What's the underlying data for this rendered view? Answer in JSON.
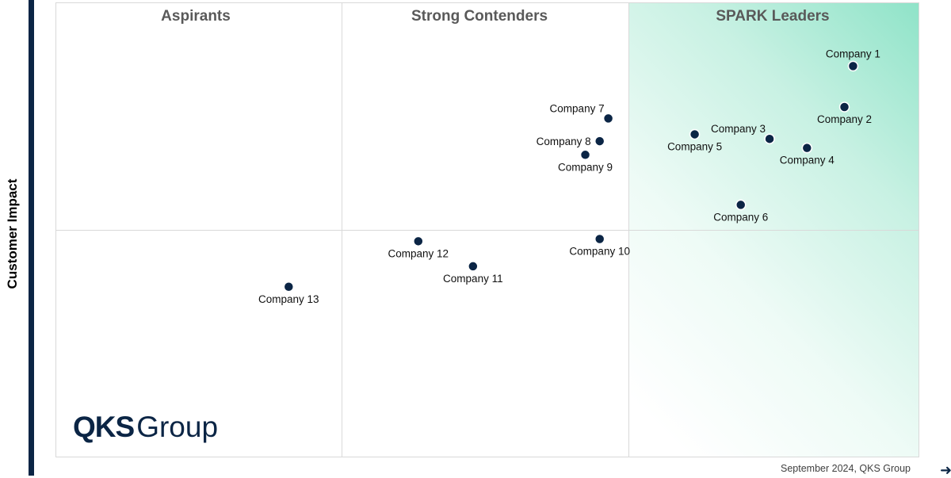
{
  "chart_data": {
    "type": "scatter",
    "title": "",
    "xlabel": "",
    "ylabel": "Customer Impact",
    "xlim": [
      0,
      3
    ],
    "ylim": [
      0,
      2
    ],
    "grid": false,
    "quadrants": [
      "Aspirants",
      "Strong Contenders",
      "SPARK Leaders"
    ],
    "points": [
      {
        "label": "Company 1",
        "x": 2.77,
        "y": 1.72,
        "label_pos": "above"
      },
      {
        "label": "Company 2",
        "x": 2.74,
        "y": 1.54,
        "label_pos": "below"
      },
      {
        "label": "Company 3",
        "x": 2.48,
        "y": 1.4,
        "label_pos": "above-left"
      },
      {
        "label": "Company 4",
        "x": 2.61,
        "y": 1.36,
        "label_pos": "below"
      },
      {
        "label": "Company 5",
        "x": 2.22,
        "y": 1.42,
        "label_pos": "below"
      },
      {
        "label": "Company 6",
        "x": 2.38,
        "y": 1.11,
        "label_pos": "below"
      },
      {
        "label": "Company 7",
        "x": 1.92,
        "y": 1.49,
        "label_pos": "above-left"
      },
      {
        "label": "Company 8",
        "x": 1.89,
        "y": 1.39,
        "label_pos": "left"
      },
      {
        "label": "Company 9",
        "x": 1.84,
        "y": 1.33,
        "label_pos": "below"
      },
      {
        "label": "Company 10",
        "x": 1.89,
        "y": 0.96,
        "label_pos": "below"
      },
      {
        "label": "Company 11",
        "x": 1.45,
        "y": 0.84,
        "label_pos": "below"
      },
      {
        "label": "Company 12",
        "x": 1.26,
        "y": 0.95,
        "label_pos": "below"
      },
      {
        "label": "Company 13",
        "x": 0.81,
        "y": 0.75,
        "label_pos": "below"
      }
    ]
  },
  "colors": {
    "point": "#0b2545",
    "axis_bar": "#0b2545",
    "leaders_shade": "#8fe3c8"
  },
  "logo": {
    "strong": "QKS",
    "light": "Group"
  },
  "footer": {
    "note": "September 2024, QKS Group"
  },
  "icons": {
    "corner": "arrow-right-icon"
  }
}
